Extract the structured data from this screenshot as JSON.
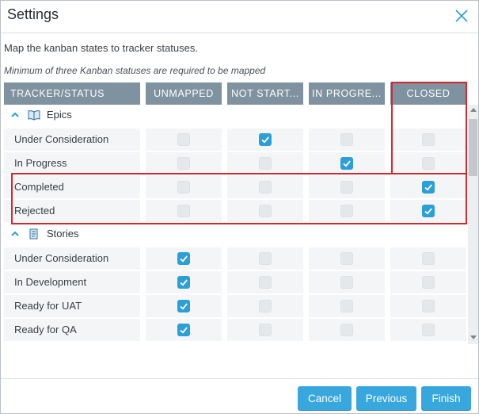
{
  "dialog": {
    "title": "Settings",
    "close_icon": "close-icon"
  },
  "description": "Map the kanban states to tracker statuses.",
  "note": "Minimum of three Kanban statuses are required to be mapped",
  "columns": {
    "tracker": "TRACKER/STATUS",
    "unmapped": "UNMAPPED",
    "not_started": "NOT START...",
    "in_progress": "IN PROGRE...",
    "closed": "CLOSED"
  },
  "groups": [
    {
      "name": "Epics",
      "icon": "book-icon",
      "rows": [
        {
          "label": "Under Consideration",
          "checks": [
            false,
            true,
            false,
            false
          ]
        },
        {
          "label": "In Progress",
          "checks": [
            false,
            false,
            true,
            false
          ]
        },
        {
          "label": "Completed",
          "checks": [
            false,
            false,
            false,
            true
          ]
        },
        {
          "label": "Rejected",
          "checks": [
            false,
            false,
            false,
            true
          ]
        }
      ]
    },
    {
      "name": "Stories",
      "icon": "document-icon",
      "rows": [
        {
          "label": "Under Consideration",
          "checks": [
            true,
            false,
            false,
            false
          ]
        },
        {
          "label": "In Development",
          "checks": [
            true,
            false,
            false,
            false
          ]
        },
        {
          "label": "Ready for UAT",
          "checks": [
            true,
            false,
            false,
            false
          ]
        },
        {
          "label": "Ready for QA",
          "checks": [
            true,
            false,
            false,
            false
          ]
        }
      ]
    }
  ],
  "footer": {
    "cancel": "Cancel",
    "previous": "Previous",
    "finish": "Finish"
  },
  "colors": {
    "accent": "#38a7dd",
    "header_bg": "#7f929f",
    "annotation": "#d9262e"
  }
}
